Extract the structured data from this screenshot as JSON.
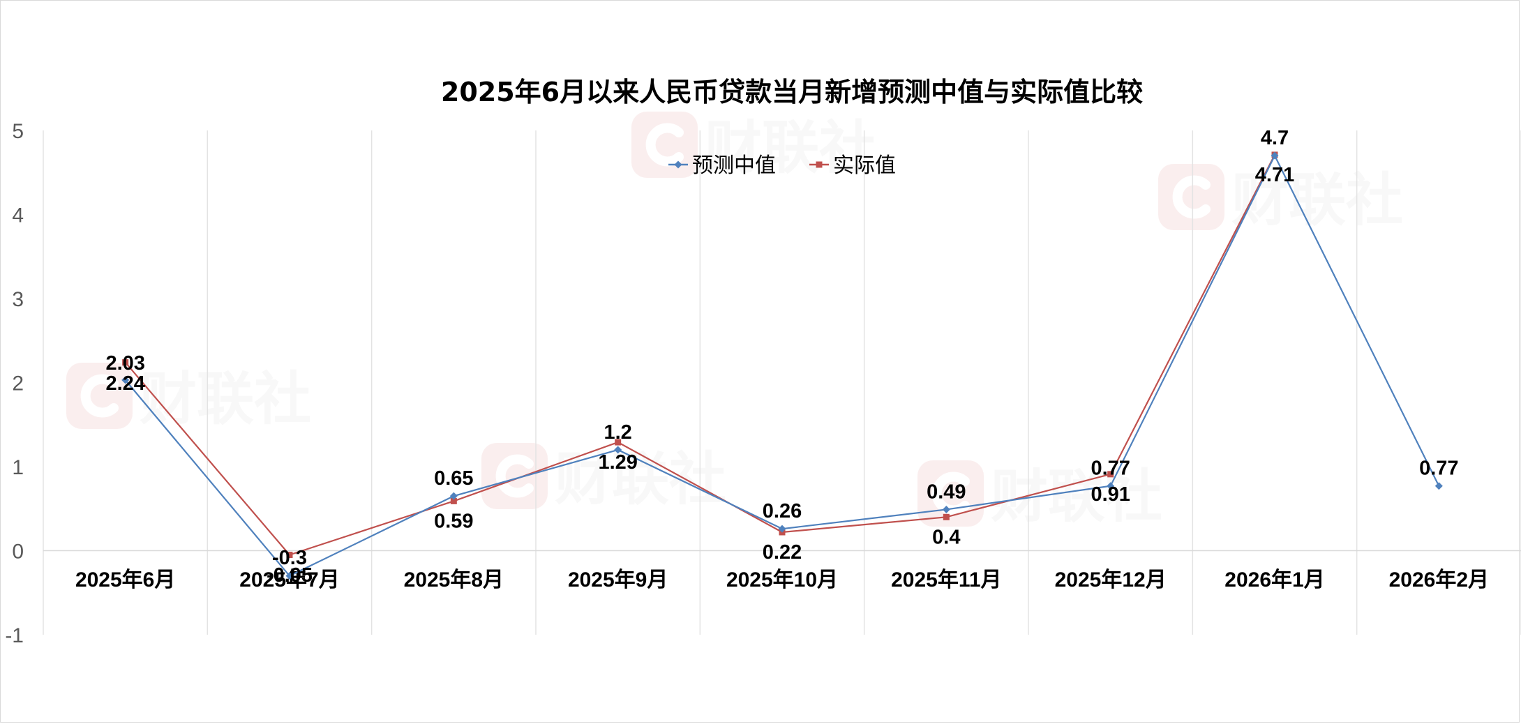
{
  "chart_data": {
    "type": "line",
    "title": "2025年6月以来人民币贷款当月新增预测中值与实际值比较",
    "xlabel": "",
    "ylabel": "",
    "ylim": [
      -1,
      5
    ],
    "yticks": [
      "5",
      "4",
      "3",
      "2",
      "1",
      "0",
      "-1"
    ],
    "categories": [
      "2025年6月",
      "2025年7月",
      "2025年8月",
      "2025年9月",
      "2025年10月",
      "2025年11月",
      "2025年12月",
      "2026年1月",
      "2026年2月"
    ],
    "series": [
      {
        "name": "预测中值",
        "color": "#4F81BD",
        "marker": "diamond",
        "values": [
          2.03,
          -0.3,
          0.65,
          1.2,
          0.26,
          0.49,
          0.77,
          4.7,
          0.77
        ],
        "labels": [
          "2.03",
          "-0.3",
          "0.65",
          "1.2",
          "0.26",
          "0.49",
          "0.77",
          "4.7",
          "0.77"
        ]
      },
      {
        "name": "实际值",
        "color": "#C0504D",
        "marker": "square",
        "values": [
          2.24,
          -0.05,
          0.59,
          1.29,
          0.22,
          0.4,
          0.91,
          4.71,
          null
        ],
        "labels": [
          "2.24",
          "-0.05",
          "0.59",
          "1.29",
          "0.22",
          "0.4",
          "0.91",
          "4.71",
          null
        ]
      }
    ],
    "grid": "vertical",
    "legend": "top-center",
    "watermark": "财联社"
  }
}
